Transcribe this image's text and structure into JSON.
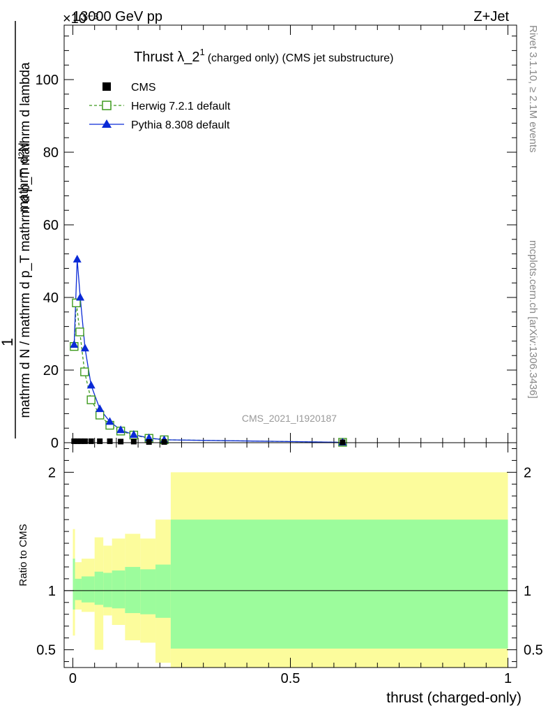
{
  "header": {
    "left": "13000 GeV pp",
    "right": "Z+Jet",
    "exponent": "×10⁻³"
  },
  "side_labels": {
    "rivet": "Rivet 3.1.10, ≥ 2.1M events",
    "mcplots": "mcplots.cern.ch [arXiv:1306.3436]"
  },
  "watermark": "CMS_2021_I1920187",
  "chart_data": [
    {
      "type": "line",
      "title": "Thrust λ_2¹ (charged only) (CMS jet substructure)",
      "title_main": "Thrust λ_2",
      "title_sup": "1",
      "title_rest": "(charged only) (CMS jet substructure)",
      "ylabel_numerator": "mathrm d²N",
      "ylabel_denominator": "mathrm d N / mathrm d p_T mathrm d p_T mathrm d lambda",
      "ylabel_prefix": "1",
      "xlim": [
        -0.02,
        1.02
      ],
      "ylim": [
        0,
        115
      ],
      "yticks": [
        0,
        20,
        40,
        60,
        80,
        100
      ],
      "ytick_labels": [
        "0",
        "20",
        "40",
        "60",
        "80",
        "100"
      ],
      "y_multiplier": "1e-3",
      "legend": [
        {
          "label": "CMS",
          "marker": "square-filled",
          "color": "#000000",
          "line": "none"
        },
        {
          "label": "Herwig 7.2.1 default",
          "marker": "square-open",
          "color": "#3d9a1d",
          "line": "dashed"
        },
        {
          "label": "Pythia 8.308 default",
          "marker": "triangle-filled",
          "color": "#0a2ad6",
          "line": "solid"
        }
      ],
      "series": [
        {
          "name": "CMS",
          "x": [
            0.003,
            0.01,
            0.018,
            0.028,
            0.042,
            0.062,
            0.085,
            0.11,
            0.14,
            0.175,
            0.21,
            0.62
          ],
          "y": [
            0.4,
            0.4,
            0.4,
            0.4,
            0.4,
            0.4,
            0.4,
            0.3,
            0.3,
            0.2,
            0.2,
            0.1
          ]
        },
        {
          "name": "Herwig 7.2.1 default",
          "x": [
            0.003,
            0.008,
            0.016,
            0.027,
            0.042,
            0.062,
            0.085,
            0.11,
            0.14,
            0.175,
            0.21,
            0.62
          ],
          "y": [
            26.5,
            38.5,
            30.5,
            19.5,
            11.8,
            7.6,
            4.8,
            3.2,
            2.1,
            1.2,
            0.8,
            0.1
          ]
        },
        {
          "name": "Pythia 8.308 default",
          "x": [
            0.003,
            0.01,
            0.017,
            0.028,
            0.042,
            0.062,
            0.085,
            0.11,
            0.14,
            0.175,
            0.21,
            0.62
          ],
          "y": [
            27.0,
            50.5,
            40.0,
            26.0,
            15.8,
            9.3,
            5.8,
            3.5,
            2.2,
            1.3,
            0.8,
            0.1
          ]
        }
      ]
    },
    {
      "type": "area",
      "ylabel": "Ratio to CMS",
      "xlabel": "thrust (charged-only)",
      "xlim": [
        -0.02,
        1.02
      ],
      "ylim": [
        0.35,
        2.25
      ],
      "xticks": [
        0,
        0.5,
        1
      ],
      "xtick_labels": [
        "0",
        "0.5",
        "1"
      ],
      "yticks": [
        0.5,
        1,
        2
      ],
      "ytick_labels": [
        "0.5",
        "1",
        "2"
      ],
      "reference": 1,
      "band_colors": {
        "inner": "#9cfc9c",
        "outer": "#fcfc9c"
      },
      "bins": [
        {
          "x0": 0.0,
          "x1": 0.005,
          "inner": [
            0.84,
            1.27
          ],
          "outer": [
            0.62,
            1.52
          ]
        },
        {
          "x0": 0.005,
          "x1": 0.02,
          "inner": [
            0.92,
            1.1
          ],
          "outer": [
            0.84,
            1.24
          ]
        },
        {
          "x0": 0.02,
          "x1": 0.05,
          "inner": [
            0.9,
            1.12
          ],
          "outer": [
            0.82,
            1.27
          ]
        },
        {
          "x0": 0.05,
          "x1": 0.07,
          "inner": [
            0.88,
            1.16
          ],
          "outer": [
            0.5,
            1.45
          ]
        },
        {
          "x0": 0.07,
          "x1": 0.09,
          "inner": [
            0.86,
            1.15
          ],
          "outer": [
            0.79,
            1.38
          ]
        },
        {
          "x0": 0.09,
          "x1": 0.12,
          "inner": [
            0.85,
            1.17
          ],
          "outer": [
            0.71,
            1.44
          ]
        },
        {
          "x0": 0.12,
          "x1": 0.155,
          "inner": [
            0.81,
            1.2
          ],
          "outer": [
            0.58,
            1.48
          ]
        },
        {
          "x0": 0.155,
          "x1": 0.19,
          "inner": [
            0.8,
            1.18
          ],
          "outer": [
            0.56,
            1.44
          ]
        },
        {
          "x0": 0.19,
          "x1": 0.225,
          "inner": [
            0.77,
            1.22
          ],
          "outer": [
            0.39,
            1.6
          ]
        },
        {
          "x0": 0.225,
          "x1": 1.0,
          "inner": [
            0.51,
            1.6
          ],
          "outer": [
            0.22,
            2.0
          ]
        }
      ]
    }
  ]
}
